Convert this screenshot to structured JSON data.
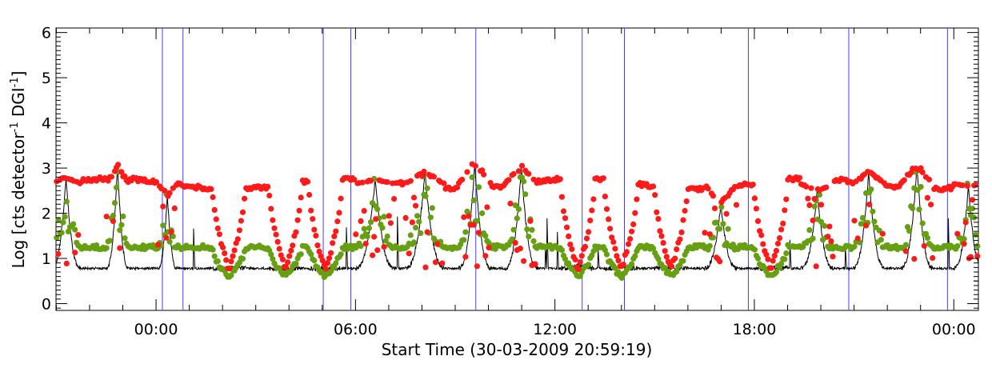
{
  "chart_data": {
    "type": "scatter",
    "title": "",
    "xlabel": "Start Time (30-03-2009 20:59:19)",
    "ylabel_parts": {
      "main": "Log [cts detector",
      "exp1": "-1",
      "mid": " DGI",
      "exp2": "-1",
      "close": "]"
    },
    "x_unit": "hours since 30-03-2009 20:59:19",
    "xlim": [
      0,
      27.75
    ],
    "ylim": [
      -0.15,
      6.1
    ],
    "x_ticks": [
      {
        "x": 3.01,
        "label": "00:00"
      },
      {
        "x": 9.01,
        "label": "06:00"
      },
      {
        "x": 15.01,
        "label": "12:00"
      },
      {
        "x": 21.01,
        "label": "18:00"
      },
      {
        "x": 27.01,
        "label": "00:00"
      }
    ],
    "y_ticks": [
      {
        "y": 0,
        "label": "0"
      },
      {
        "y": 1,
        "label": "1"
      },
      {
        "y": 2,
        "label": "2"
      },
      {
        "y": 3,
        "label": "3"
      },
      {
        "y": 4,
        "label": "4"
      },
      {
        "y": 5,
        "label": "5"
      },
      {
        "y": 6,
        "label": "6"
      }
    ],
    "vertical_lines": {
      "color": "#4040ff",
      "x": [
        3.2,
        3.82,
        8.04,
        8.87,
        12.63,
        15.83,
        17.1,
        20.83,
        23.85,
        26.82
      ]
    },
    "red_color": "#ff1a1a",
    "green_color": "#66a012",
    "black_color": "#000000",
    "red_base": 2.65,
    "green_base": 1.25,
    "black_base": 0.78,
    "passages": [
      {
        "center": 0.3,
        "width": 0.45,
        "peak": 2.8
      },
      {
        "center": 1.85,
        "width": 0.35,
        "peak": 3.05
      },
      {
        "center": 3.35,
        "width": 0.3,
        "peak": 2.4
      },
      {
        "center": 5.2,
        "width": 0.5,
        "peak": 0.8
      },
      {
        "center": 6.9,
        "width": 0.5,
        "peak": 0.75
      },
      {
        "center": 8.1,
        "width": 0.5,
        "peak": 0.75
      },
      {
        "center": 9.6,
        "width": 0.6,
        "peak": 2.75
      },
      {
        "center": 11.1,
        "width": 0.6,
        "peak": 2.9
      },
      {
        "center": 12.6,
        "width": 0.5,
        "peak": 3.1
      },
      {
        "center": 14.0,
        "width": 0.5,
        "peak": 3.05
      },
      {
        "center": 15.7,
        "width": 0.5,
        "peak": 0.85
      },
      {
        "center": 17.0,
        "width": 0.5,
        "peak": 0.85
      },
      {
        "center": 18.5,
        "width": 0.5,
        "peak": 0.8
      },
      {
        "center": 20.0,
        "width": 0.5,
        "peak": 2.2
      },
      {
        "center": 21.5,
        "width": 0.5,
        "peak": 0.8
      },
      {
        "center": 22.9,
        "width": 0.5,
        "peak": 2.5
      },
      {
        "center": 24.45,
        "width": 0.5,
        "peak": 2.9
      },
      {
        "center": 25.9,
        "width": 0.5,
        "peak": 3.05
      },
      {
        "center": 27.45,
        "width": 0.45,
        "peak": 2.6
      }
    ]
  }
}
